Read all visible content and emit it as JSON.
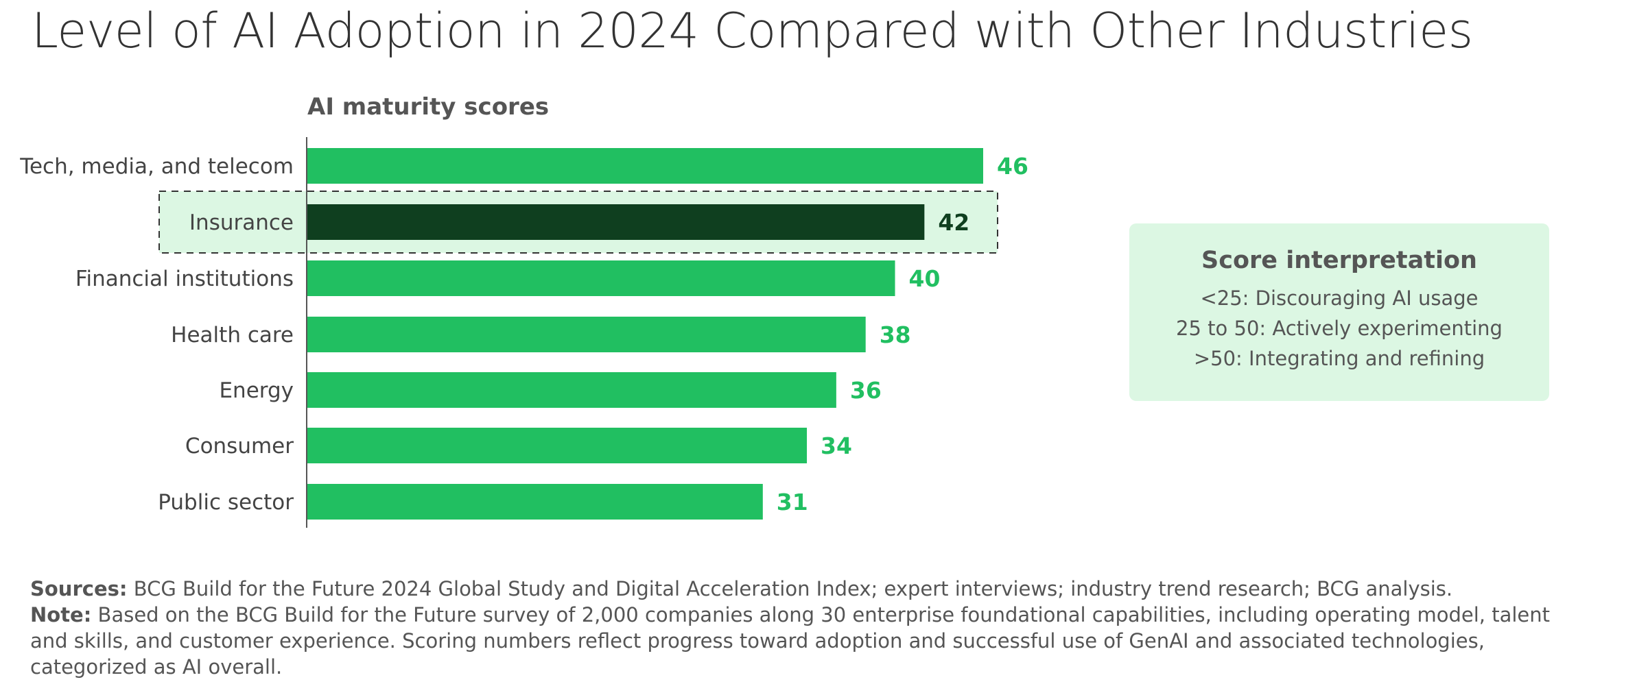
{
  "title": "Level of AI Adoption in 2024 Compared with Other Industries",
  "chart_data": {
    "type": "bar",
    "orientation": "horizontal",
    "subtitle": "AI maturity scores",
    "categories": [
      "Tech, media, and telecom",
      "Insurance",
      "Financial institutions",
      "Health care",
      "Energy",
      "Consumer",
      "Public sector"
    ],
    "values": [
      46,
      42,
      40,
      38,
      36,
      34,
      31
    ],
    "highlight": "Insurance",
    "xlim": [
      0,
      50
    ],
    "grid": false,
    "colors": {
      "bar": "#21bf61",
      "highlight_bar": "#0f3f1f",
      "highlight_band": "#dcf7e3",
      "value_label": "#21bf61",
      "highlight_label": "#0f3f1f"
    }
  },
  "legend": {
    "title": "Score interpretation",
    "lines": [
      "<25: Discouraging AI usage",
      "25 to 50: Actively experimenting",
      ">50: Integrating and refining"
    ]
  },
  "footnote": {
    "sources_label": "Sources:",
    "sources_text": " BCG Build for the Future 2024 Global Study and Digital Acceleration Index; expert interviews; industry trend research; BCG analysis.",
    "note_label": "Note:",
    "note_text": " Based on the BCG Build for the Future survey of 2,000 companies along 30 enterprise foundational capabilities, including operating model, talent and skills, and customer experience. Scoring numbers reflect progress toward adoption and successful use of GenAI and associated technologies, categorized as AI overall."
  }
}
